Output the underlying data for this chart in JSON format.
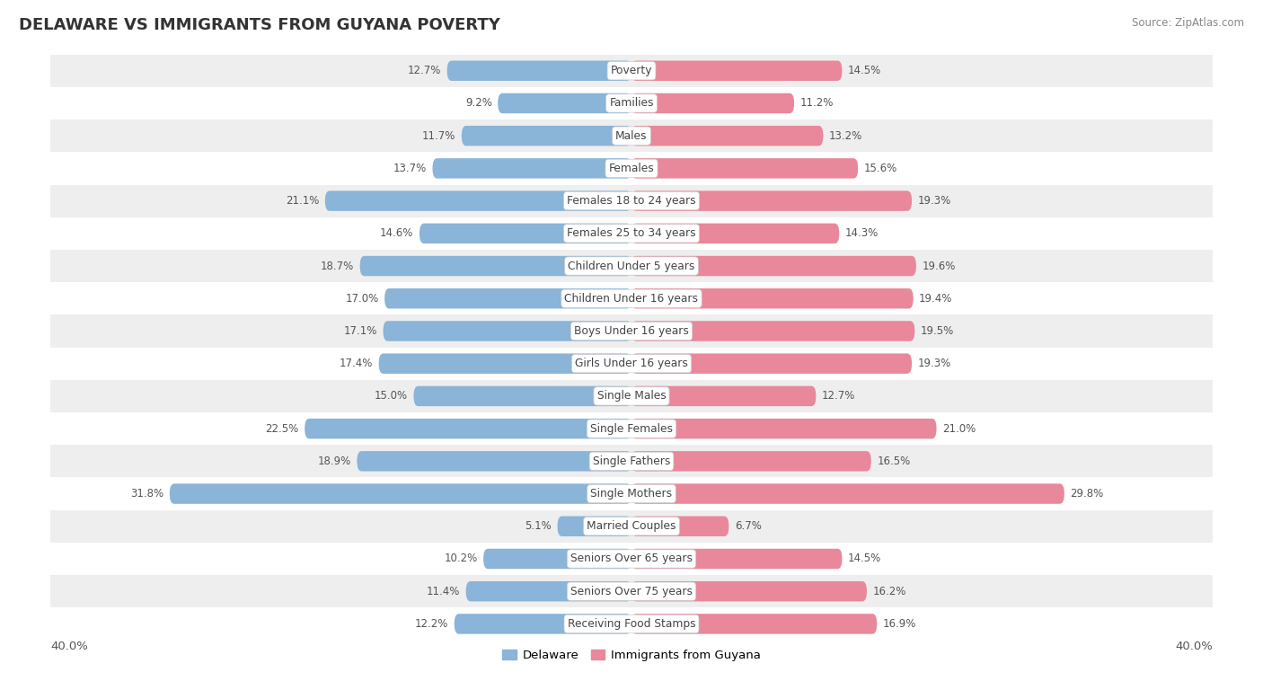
{
  "title": "DELAWARE VS IMMIGRANTS FROM GUYANA POVERTY",
  "source": "Source: ZipAtlas.com",
  "categories": [
    "Poverty",
    "Families",
    "Males",
    "Females",
    "Females 18 to 24 years",
    "Females 25 to 34 years",
    "Children Under 5 years",
    "Children Under 16 years",
    "Boys Under 16 years",
    "Girls Under 16 years",
    "Single Males",
    "Single Females",
    "Single Fathers",
    "Single Mothers",
    "Married Couples",
    "Seniors Over 65 years",
    "Seniors Over 75 years",
    "Receiving Food Stamps"
  ],
  "delaware": [
    12.7,
    9.2,
    11.7,
    13.7,
    21.1,
    14.6,
    18.7,
    17.0,
    17.1,
    17.4,
    15.0,
    22.5,
    18.9,
    31.8,
    5.1,
    10.2,
    11.4,
    12.2
  ],
  "guyana": [
    14.5,
    11.2,
    13.2,
    15.6,
    19.3,
    14.3,
    19.6,
    19.4,
    19.5,
    19.3,
    12.7,
    21.0,
    16.5,
    29.8,
    6.7,
    14.5,
    16.2,
    16.9
  ],
  "delaware_color": "#8ab4d8",
  "guyana_color": "#e8889a",
  "delaware_label": "Delaware",
  "guyana_label": "Immigrants from Guyana",
  "axis_max": 40.0,
  "bar_height": 0.62,
  "row_bg_light": "#eeeeee",
  "row_bg_white": "#ffffff",
  "label_fontsize": 8.8,
  "value_fontsize": 8.5,
  "title_fontsize": 13.0
}
